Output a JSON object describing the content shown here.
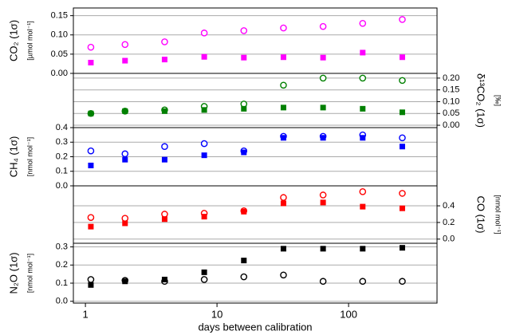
{
  "chart_data": [
    {
      "type": "scatter",
      "ylabel": "CO₂ (1σ)",
      "yunit": "[µmol mol⁻¹]",
      "yaxis": "left",
      "xscale": "log",
      "grid": true,
      "x": [
        1.1,
        2,
        4,
        8,
        16,
        32,
        64,
        128,
        256
      ],
      "xlim": [
        0.81,
        470
      ],
      "ylim": [
        0,
        0.17
      ],
      "yticks": [
        {
          "value": 0,
          "label": "0.00"
        },
        {
          "value": 0.05,
          "label": "0.05"
        },
        {
          "value": 0.1,
          "label": "0.10"
        },
        {
          "value": 0.15,
          "label": "0.15"
        }
      ],
      "series": [
        {
          "marker": "circle-open",
          "color": "#ff00ff",
          "values": [
            0.068,
            0.075,
            0.082,
            0.105,
            0.111,
            0.118,
            0.122,
            0.13,
            0.14
          ]
        },
        {
          "marker": "square",
          "color": "#ff00ff",
          "values": [
            0.028,
            0.033,
            0.036,
            0.043,
            0.041,
            0.042,
            0.041,
            0.054,
            0.042
          ]
        }
      ]
    },
    {
      "type": "scatter",
      "ylabel": "δ¹³CO₂ (1σ)",
      "yunit": "[‰]",
      "yaxis": "right",
      "xscale": "log",
      "grid": true,
      "x": [
        1.1,
        2,
        4,
        8,
        16,
        32,
        64,
        128,
        256
      ],
      "xlim": [
        0.81,
        470
      ],
      "ylim": [
        -0.01,
        0.22
      ],
      "yticks": [
        {
          "value": 0,
          "label": "0.00"
        },
        {
          "value": 0.05,
          "label": "0.05"
        },
        {
          "value": 0.1,
          "label": "0.10"
        },
        {
          "value": 0.15,
          "label": "0.15"
        },
        {
          "value": 0.2,
          "label": "0.20"
        }
      ],
      "series": [
        {
          "marker": "circle-open",
          "color": "#008000",
          "values": [
            0.05,
            0.06,
            0.065,
            0.08,
            0.09,
            0.17,
            0.2,
            0.2,
            0.19
          ]
        },
        {
          "marker": "square",
          "color": "#008000",
          "values": [
            0.05,
            0.06,
            0.06,
            0.065,
            0.07,
            0.075,
            0.075,
            0.07,
            0.055
          ]
        }
      ]
    },
    {
      "type": "scatter",
      "ylabel": "CH₄ (1σ)",
      "yunit": "[nmol mol⁻¹]",
      "yaxis": "left",
      "xscale": "log",
      "grid": true,
      "x": [
        1.1,
        2,
        4,
        8,
        16,
        32,
        64,
        128,
        256
      ],
      "xlim": [
        0.81,
        470
      ],
      "ylim": [
        0,
        0.4
      ],
      "yticks": [
        {
          "value": 0,
          "label": "0.0"
        },
        0.1,
        0.2,
        0.3,
        0.4
      ],
      "series": [
        {
          "marker": "circle-open",
          "color": "#0000ff",
          "values": [
            0.24,
            0.22,
            0.27,
            0.29,
            0.24,
            0.34,
            0.34,
            0.35,
            0.33
          ]
        },
        {
          "marker": "square",
          "color": "#0000ff",
          "values": [
            0.14,
            0.18,
            0.18,
            0.21,
            0.23,
            0.33,
            0.33,
            0.33,
            0.27
          ]
        }
      ]
    },
    {
      "type": "scatter",
      "ylabel": "CO (1σ)",
      "yunit": "[nmol mol⁻¹]",
      "yaxis": "right",
      "xscale": "log",
      "grid": true,
      "x": [
        1.1,
        2,
        4,
        8,
        16,
        32,
        64,
        128,
        256
      ],
      "xlim": [
        0.81,
        470
      ],
      "ylim": [
        -0.05,
        0.64
      ],
      "yticks": [
        {
          "value": 0,
          "label": "0.0"
        },
        0.2,
        0.4
      ],
      "series": [
        {
          "marker": "circle-open",
          "color": "#ff0000",
          "values": [
            0.26,
            0.25,
            0.3,
            0.31,
            0.34,
            0.5,
            0.53,
            0.57,
            0.55
          ]
        },
        {
          "marker": "square",
          "color": "#ff0000",
          "values": [
            0.15,
            0.19,
            0.24,
            0.27,
            0.33,
            0.43,
            0.44,
            0.39,
            0.37
          ]
        }
      ]
    },
    {
      "type": "scatter",
      "ylabel": "N₂O (1σ)",
      "yunit": "[nmol mol⁻¹]",
      "yaxis": "left",
      "xscale": "log",
      "grid": true,
      "x": [
        1.1,
        2,
        4,
        8,
        16,
        32,
        64,
        128,
        256
      ],
      "xlim": [
        0.81,
        470
      ],
      "xticks": [
        1,
        10,
        100
      ],
      "xlabel": "days between calibration",
      "ylim": [
        -0.01,
        0.32
      ],
      "yticks": [
        {
          "value": 0,
          "label": "0.0"
        },
        0.1,
        0.2,
        0.3
      ],
      "series": [
        {
          "marker": "circle-open",
          "color": "#000000",
          "values": [
            0.12,
            0.115,
            0.11,
            0.12,
            0.135,
            0.145,
            0.11,
            0.11,
            0.11
          ]
        },
        {
          "marker": "square",
          "color": "#000000",
          "values": [
            0.09,
            0.11,
            0.12,
            0.16,
            0.225,
            0.29,
            0.29,
            0.29,
            0.295
          ]
        }
      ]
    }
  ]
}
